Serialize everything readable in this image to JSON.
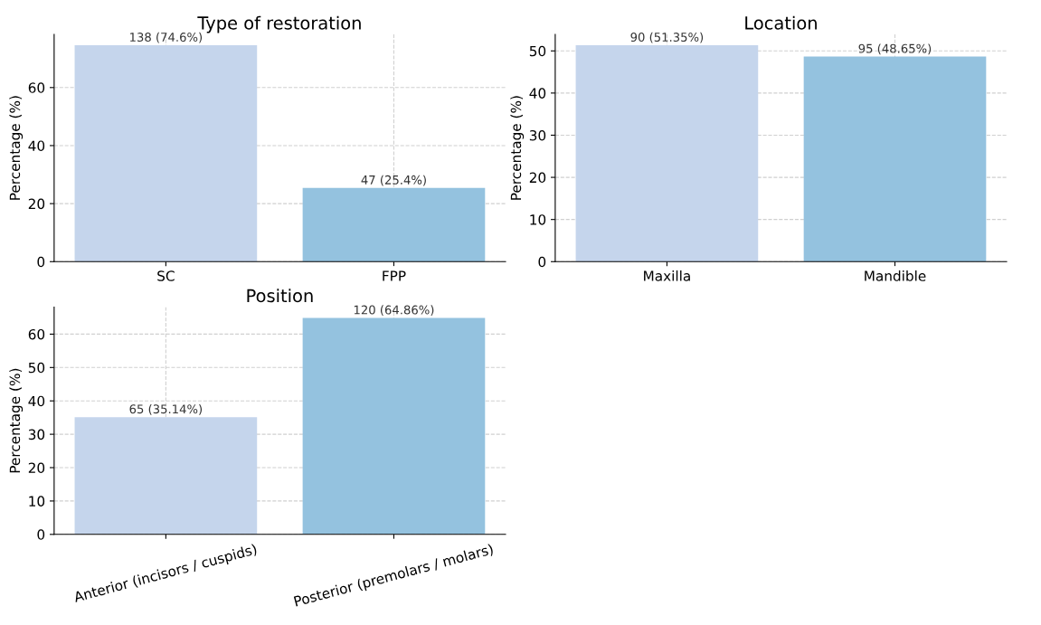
{
  "chart_data": [
    {
      "type": "bar",
      "title": "Type of restoration",
      "ylabel": "Percentage (%)",
      "categories": [
        "SC",
        "FPP"
      ],
      "values": [
        74.6,
        25.4
      ],
      "colors": [
        "#c5d5ec",
        "#94c2df"
      ],
      "value_labels": [
        "138 (74.6%)",
        "47 (25.4%)"
      ],
      "ylim": [
        0,
        78.33
      ],
      "yticks": [
        0,
        20,
        40,
        60
      ],
      "grid": true
    },
    {
      "type": "bar",
      "title": "Location",
      "ylabel": "Percentage (%)",
      "categories": [
        "Maxilla",
        "Mandible"
      ],
      "values": [
        51.35,
        48.65
      ],
      "colors": [
        "#c5d5ec",
        "#94c2df"
      ],
      "value_labels": [
        "90 (51.35%)",
        "95 (48.65%)"
      ],
      "ylim": [
        0,
        53.92
      ],
      "yticks": [
        0,
        10,
        20,
        30,
        40,
        50
      ],
      "grid": true
    },
    {
      "type": "bar",
      "title": "Position",
      "ylabel": "Percentage (%)",
      "categories": [
        "Anterior (incisors / cuspids)",
        "Posterior (premolars / molars)"
      ],
      "values": [
        35.14,
        64.86
      ],
      "colors": [
        "#c5d5ec",
        "#94c2df"
      ],
      "value_labels": [
        "65 (35.14%)",
        "120 (64.86%)"
      ],
      "ylim": [
        0,
        68.1
      ],
      "yticks": [
        0,
        10,
        20,
        30,
        40,
        50,
        60
      ],
      "grid": true
    }
  ]
}
